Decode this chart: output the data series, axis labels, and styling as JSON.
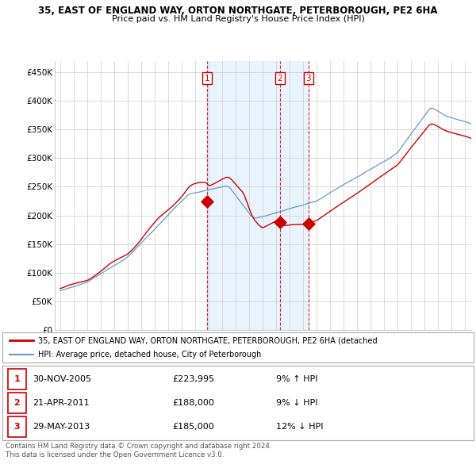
{
  "title": "35, EAST OF ENGLAND WAY, ORTON NORTHGATE, PETERBOROUGH, PE2 6HA",
  "subtitle": "Price paid vs. HM Land Registry's House Price Index (HPI)",
  "legend_line1": "35, EAST OF ENGLAND WAY, ORTON NORTHGATE, PETERBOROUGH, PE2 6HA (detached",
  "legend_line2": "HPI: Average price, detached house, City of Peterborough",
  "footer1": "Contains HM Land Registry data © Crown copyright and database right 2024.",
  "footer2": "This data is licensed under the Open Government Licence v3.0.",
  "table": [
    {
      "num": "1",
      "date": "30-NOV-2005",
      "price": "£223,995",
      "change": "9% ↑ HPI"
    },
    {
      "num": "2",
      "date": "21-APR-2011",
      "price": "£188,000",
      "change": "9% ↓ HPI"
    },
    {
      "num": "3",
      "date": "29-MAY-2013",
      "price": "£185,000",
      "change": "12% ↓ HPI"
    }
  ],
  "sale_dates": [
    2005.917,
    2011.306,
    2013.414
  ],
  "sale_prices": [
    223995,
    188000,
    185000
  ],
  "ylim": [
    0,
    470000
  ],
  "yticks": [
    0,
    50000,
    100000,
    150000,
    200000,
    250000,
    300000,
    350000,
    400000,
    450000
  ],
  "ytick_labels": [
    "£0",
    "£50K",
    "£100K",
    "£150K",
    "£200K",
    "£250K",
    "£300K",
    "£350K",
    "£400K",
    "£450K"
  ],
  "red_color": "#cc0000",
  "blue_color": "#6699cc",
  "shade_color": "#ddeeff",
  "background": "#ffffff",
  "grid_color": "#cccccc"
}
